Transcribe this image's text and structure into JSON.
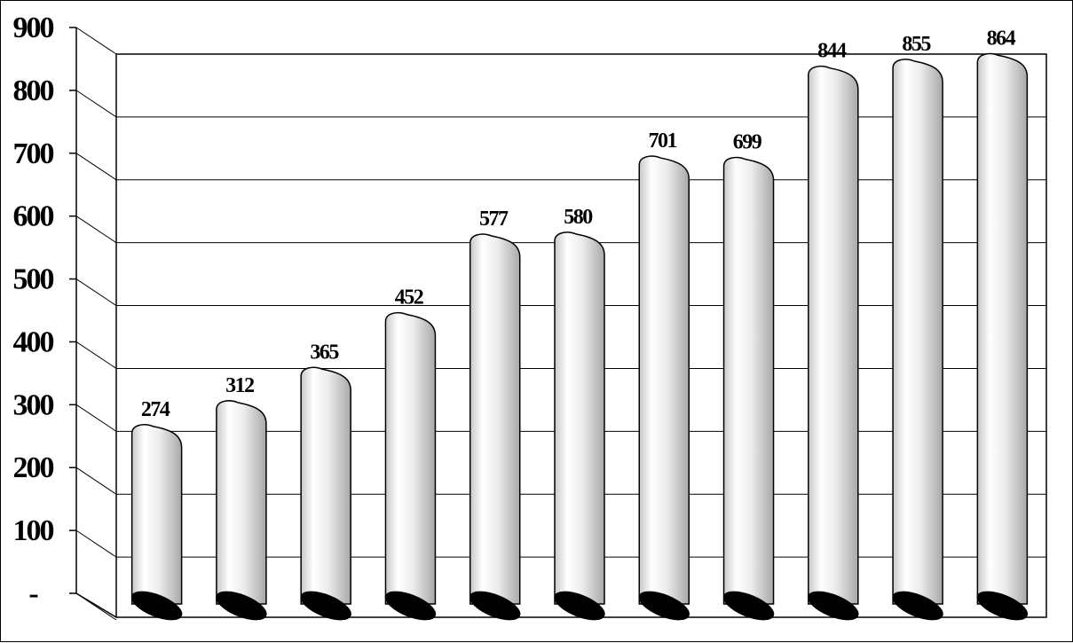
{
  "chart_data": {
    "type": "bar",
    "title": "",
    "xlabel": "",
    "ylabel": "",
    "categories": [
      "",
      "",
      "",
      "",
      "",
      "",
      "",
      "",
      "",
      "",
      ""
    ],
    "values": [
      274,
      312,
      365,
      452,
      577,
      580,
      701,
      699,
      844,
      855,
      864
    ],
    "ylim": [
      0,
      900
    ],
    "yticks": [
      0,
      100,
      200,
      300,
      400,
      500,
      600,
      700,
      800,
      900
    ],
    "ytick_labels": [
      "-",
      "100",
      "200",
      "300",
      "400",
      "500",
      "600",
      "700",
      "800",
      "900"
    ],
    "data_labels": [
      "274",
      "312",
      "365",
      "452",
      "577",
      "580",
      "701",
      "699",
      "844",
      "855",
      "864"
    ],
    "grid": true,
    "legend": "none",
    "style": "3d-cylinder",
    "colors": {
      "bar_light": "#ffffff",
      "bar_mid": "#e6e6e6",
      "bar_dark": "#a8a8a8",
      "base_ellipse": "#000000",
      "grid": "#000000"
    }
  }
}
